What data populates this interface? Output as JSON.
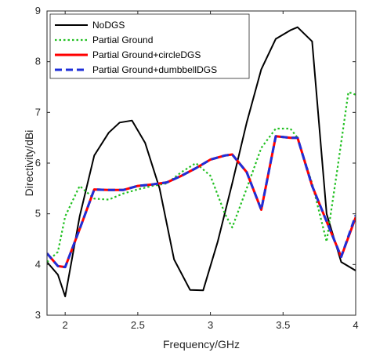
{
  "chart_data": {
    "type": "line",
    "xlabel": "Frequency/GHz",
    "ylabel": "Directivity/dBi",
    "xlim": [
      1.875,
      4.0
    ],
    "ylim": [
      3,
      9
    ],
    "xticks": [
      2,
      2.5,
      3,
      3.5,
      4
    ],
    "xtick_labels": [
      "2",
      "2.5",
      "3",
      "3.5",
      "4"
    ],
    "yticks": [
      3,
      4,
      5,
      6,
      7,
      8,
      9
    ],
    "ytick_labels": [
      "3",
      "4",
      "5",
      "6",
      "7",
      "8",
      "9"
    ],
    "grid": false,
    "legend_position": "top-left",
    "series": [
      {
        "name": "NoDGS",
        "color": "#000000",
        "style": "solid",
        "x": [
          1.875,
          1.95,
          2.0,
          2.1,
          2.2,
          2.3,
          2.375,
          2.46,
          2.55,
          2.65,
          2.75,
          2.86,
          2.95,
          3.05,
          3.15,
          3.25,
          3.35,
          3.45,
          3.55,
          3.6,
          3.7,
          3.8,
          3.9,
          4.0
        ],
        "y": [
          4.05,
          3.8,
          3.37,
          4.95,
          6.15,
          6.6,
          6.8,
          6.84,
          6.4,
          5.5,
          4.1,
          3.5,
          3.49,
          4.45,
          5.6,
          6.8,
          7.85,
          8.45,
          8.62,
          8.68,
          8.4,
          5.0,
          4.05,
          3.88
        ]
      },
      {
        "name": "Partial Ground",
        "color": "#22c022",
        "style": "dotted",
        "x": [
          1.875,
          1.95,
          2.0,
          2.1,
          2.2,
          2.3,
          2.4,
          2.5,
          2.6,
          2.7,
          2.8,
          2.9,
          3.0,
          3.1,
          3.15,
          3.25,
          3.35,
          3.45,
          3.55,
          3.6,
          3.7,
          3.8,
          3.875,
          3.95,
          4.0
        ],
        "y": [
          4.05,
          4.25,
          4.95,
          5.55,
          5.3,
          5.28,
          5.4,
          5.48,
          5.55,
          5.6,
          5.82,
          6.0,
          5.75,
          5.0,
          4.73,
          5.5,
          6.3,
          6.68,
          6.68,
          6.5,
          5.6,
          4.45,
          5.9,
          7.4,
          7.35
        ]
      },
      {
        "name": "Partial Ground+circleDGS",
        "color": "#ff0000",
        "style": "solid",
        "x": [
          1.875,
          1.95,
          2.0,
          2.1,
          2.2,
          2.3,
          2.4,
          2.5,
          2.6,
          2.7,
          2.8,
          2.9,
          3.0,
          3.1,
          3.15,
          3.25,
          3.35,
          3.45,
          3.55,
          3.6,
          3.7,
          3.8,
          3.9,
          4.0
        ],
        "y": [
          4.22,
          3.97,
          3.95,
          4.7,
          5.48,
          5.47,
          5.47,
          5.55,
          5.58,
          5.62,
          5.75,
          5.9,
          6.07,
          6.15,
          6.17,
          5.82,
          5.08,
          6.53,
          6.5,
          6.5,
          5.55,
          4.85,
          4.15,
          4.93
        ]
      },
      {
        "name": "Partial Ground+dumbbellDGS",
        "color": "#1e2fd8",
        "style": "dashed",
        "x": [
          1.875,
          1.95,
          2.0,
          2.1,
          2.2,
          2.3,
          2.4,
          2.5,
          2.6,
          2.7,
          2.8,
          2.9,
          3.0,
          3.1,
          3.15,
          3.25,
          3.35,
          3.45,
          3.55,
          3.6,
          3.7,
          3.8,
          3.9,
          4.0
        ],
        "y": [
          4.22,
          3.97,
          3.95,
          4.7,
          5.48,
          5.47,
          5.47,
          5.55,
          5.58,
          5.62,
          5.75,
          5.9,
          6.07,
          6.15,
          6.17,
          5.82,
          5.08,
          6.53,
          6.5,
          6.5,
          5.55,
          4.85,
          4.15,
          4.97
        ]
      }
    ]
  }
}
